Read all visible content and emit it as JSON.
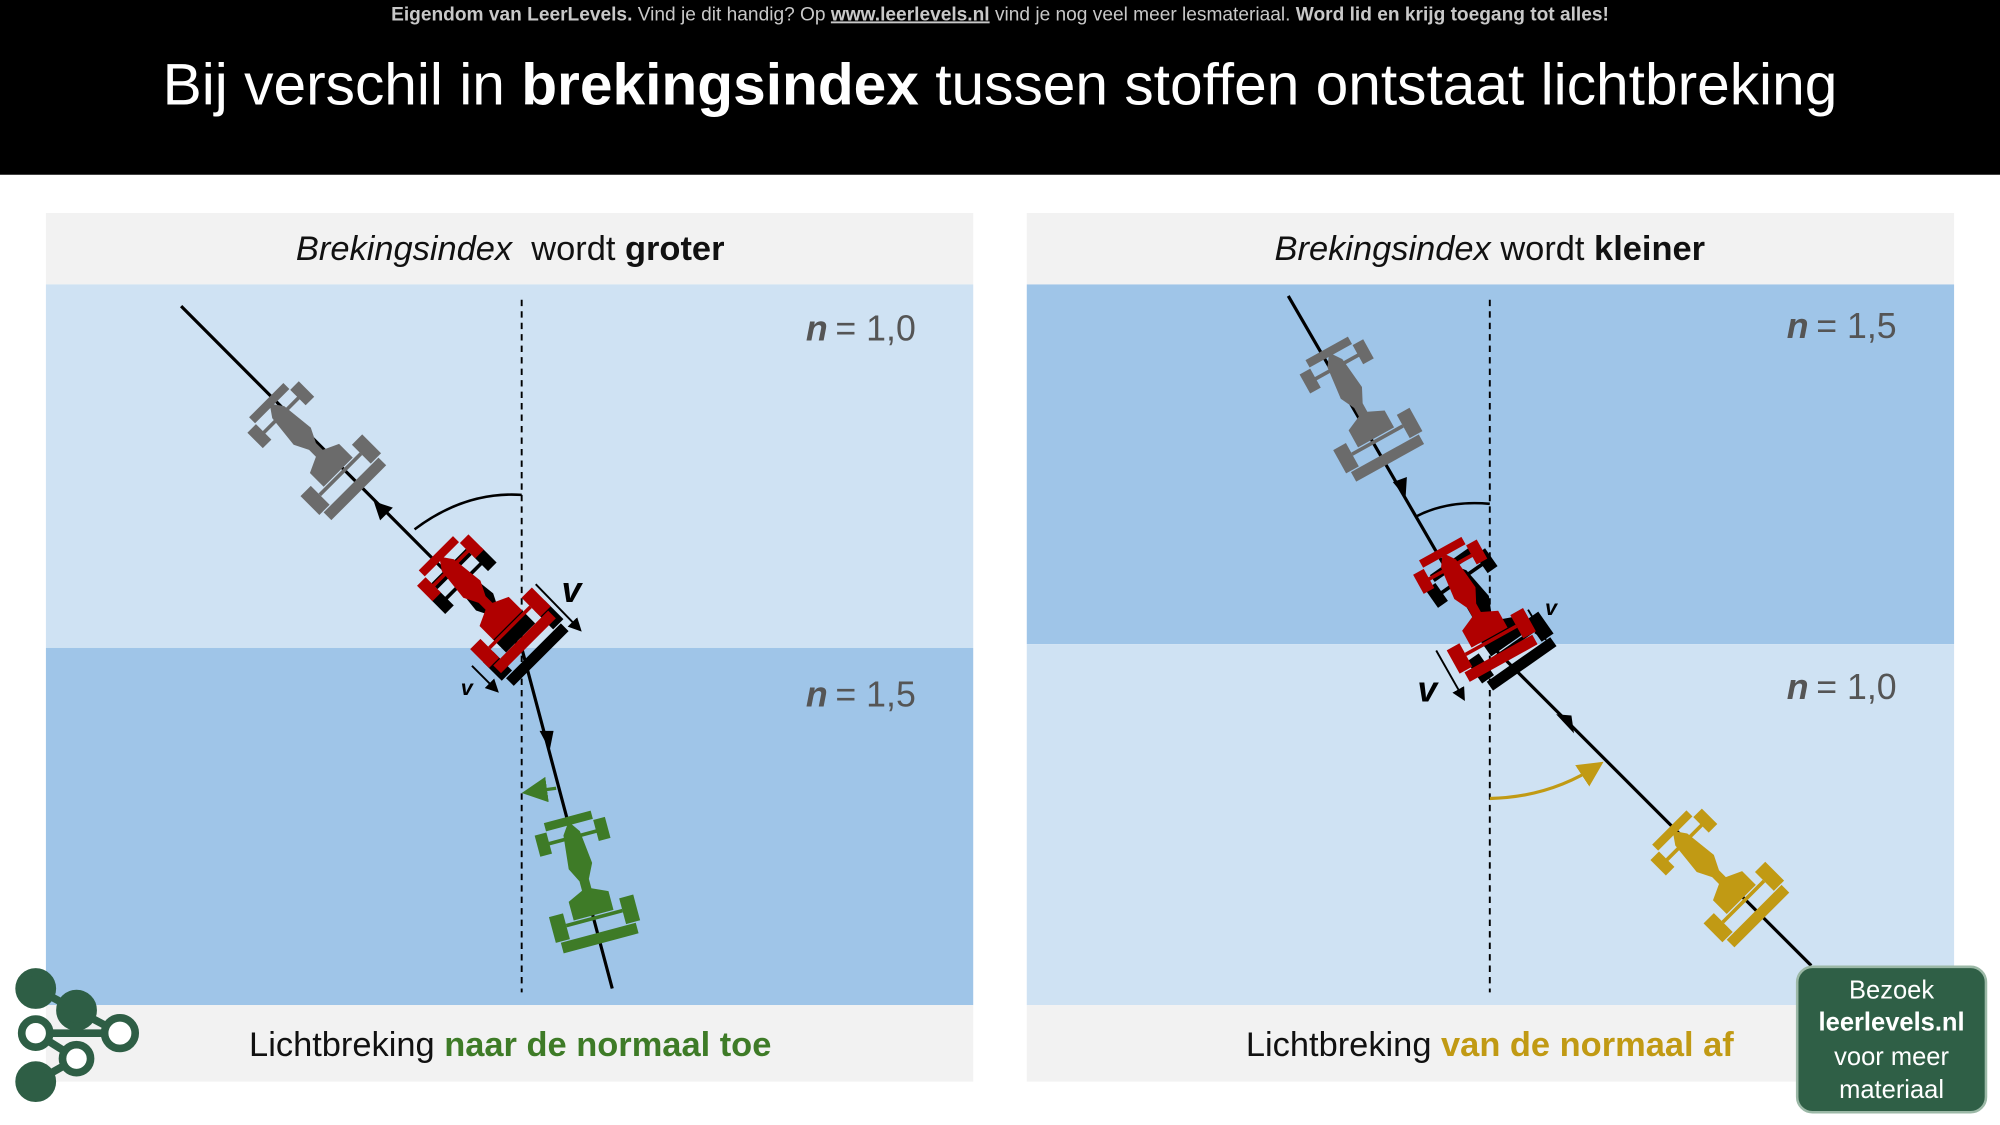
{
  "banner": {
    "notice": [
      "Eigendom van LeerLevels.",
      " Vind je dit handig? Op ",
      "www.leerlevels.nl",
      " vind je nog veel meer lesmateriaal. ",
      "Word lid en krijg toegang tot alles!"
    ],
    "title": [
      "Bij verschil in ",
      "brekingsindex",
      " tussen stoffen ontstaat lichtbreking"
    ]
  },
  "panels": [
    {
      "header": [
        "Brekingsindex",
        "  wordt ",
        "groter"
      ],
      "media": [
        {
          "symbol": "n",
          "value": "= 1,0"
        },
        {
          "symbol": "n",
          "value": "= 1,5"
        }
      ],
      "velocity_labels": [
        "v",
        "v"
      ],
      "footer": [
        "Lichtbreking ",
        "naar de normaal toe"
      ]
    },
    {
      "header": [
        "Brekingsindex",
        " wordt ",
        "kleiner"
      ],
      "media": [
        {
          "symbol": "n",
          "value": "= 1,5"
        },
        {
          "symbol": "n",
          "value": "= 1,0"
        }
      ],
      "velocity_labels": [
        "v",
        "v"
      ],
      "footer": [
        "Lichtbreking ",
        "van de normaal af"
      ]
    }
  ],
  "button": {
    "lines": [
      "Bezoek",
      "leerlevels.nl",
      "voor meer",
      "materiaal"
    ]
  }
}
